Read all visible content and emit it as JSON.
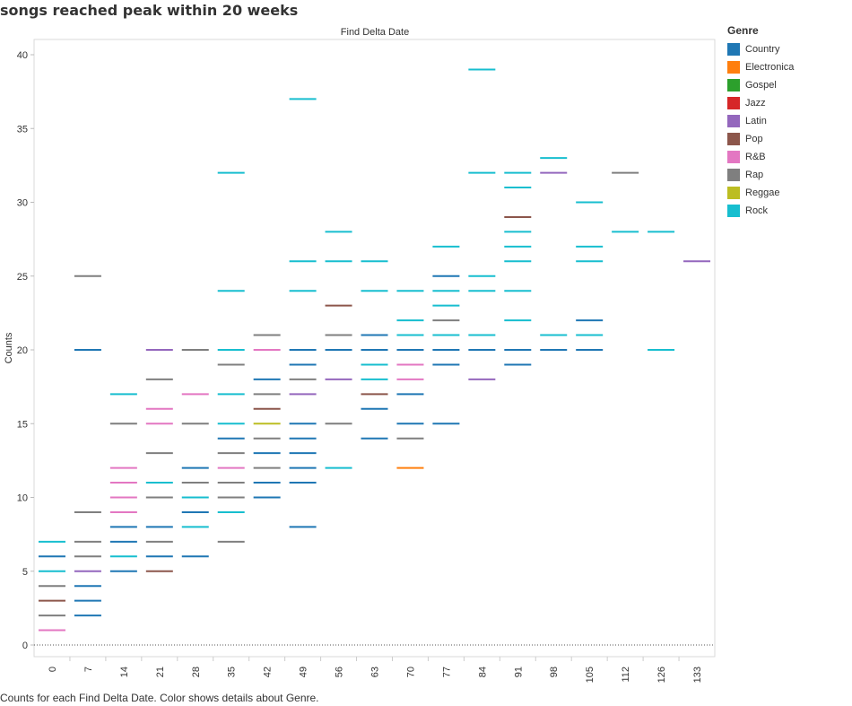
{
  "page": {
    "title": "songs reached peak within 20 weeks",
    "caption": "Counts for each Find Delta Date.  Color shows details about Genre."
  },
  "legend": {
    "title": "Genre",
    "items": [
      {
        "label": "Country",
        "color": "#1f77b4"
      },
      {
        "label": "Electronica",
        "color": "#ff7f0e"
      },
      {
        "label": "Gospel",
        "color": "#2ca02c"
      },
      {
        "label": "Jazz",
        "color": "#d62728"
      },
      {
        "label": "Latin",
        "color": "#9467bd"
      },
      {
        "label": "Pop",
        "color": "#8c564b"
      },
      {
        "label": "R&B",
        "color": "#e377c2"
      },
      {
        "label": "Rap",
        "color": "#7f7f7f"
      },
      {
        "label": "Reggae",
        "color": "#bcbd22"
      },
      {
        "label": "Rock",
        "color": "#17becf"
      }
    ]
  },
  "chart_data": {
    "type": "scatter",
    "mark": "dash",
    "title": "Find Delta Date",
    "xlabel": "",
    "ylabel": "Counts",
    "categories": [
      "0",
      "7",
      "14",
      "21",
      "28",
      "35",
      "42",
      "49",
      "56",
      "63",
      "70",
      "77",
      "84",
      "91",
      "98",
      "105",
      "112",
      "126",
      "133"
    ],
    "ylim": [
      0,
      40
    ],
    "yticks": [
      0,
      5,
      10,
      15,
      20,
      25,
      30,
      35,
      40
    ],
    "grid": false,
    "legend_position": "right",
    "points": [
      {
        "x": "0",
        "y": 7,
        "genre": "Rock"
      },
      {
        "x": "0",
        "y": 6,
        "genre": "Country"
      },
      {
        "x": "0",
        "y": 5,
        "genre": "Rock"
      },
      {
        "x": "0",
        "y": 4,
        "genre": "Rap"
      },
      {
        "x": "0",
        "y": 3,
        "genre": "Pop"
      },
      {
        "x": "0",
        "y": 2,
        "genre": "Rap"
      },
      {
        "x": "0",
        "y": 1,
        "genre": "R&B"
      },
      {
        "x": "7",
        "y": 25,
        "genre": "Rap"
      },
      {
        "x": "7",
        "y": 20,
        "genre": "Country"
      },
      {
        "x": "7",
        "y": 9,
        "genre": "Rap"
      },
      {
        "x": "7",
        "y": 7,
        "genre": "Rap"
      },
      {
        "x": "7",
        "y": 6,
        "genre": "Rap"
      },
      {
        "x": "7",
        "y": 5,
        "genre": "Latin"
      },
      {
        "x": "7",
        "y": 4,
        "genre": "Country"
      },
      {
        "x": "7",
        "y": 3,
        "genre": "Country"
      },
      {
        "x": "7",
        "y": 2,
        "genre": "Country"
      },
      {
        "x": "14",
        "y": 17,
        "genre": "Rock"
      },
      {
        "x": "14",
        "y": 15,
        "genre": "Rap"
      },
      {
        "x": "14",
        "y": 12,
        "genre": "R&B"
      },
      {
        "x": "14",
        "y": 11,
        "genre": "R&B"
      },
      {
        "x": "14",
        "y": 10,
        "genre": "R&B"
      },
      {
        "x": "14",
        "y": 9,
        "genre": "R&B"
      },
      {
        "x": "14",
        "y": 8,
        "genre": "Country"
      },
      {
        "x": "14",
        "y": 7,
        "genre": "Country"
      },
      {
        "x": "14",
        "y": 6,
        "genre": "Rock"
      },
      {
        "x": "14",
        "y": 5,
        "genre": "Country"
      },
      {
        "x": "21",
        "y": 20,
        "genre": "Latin"
      },
      {
        "x": "21",
        "y": 18,
        "genre": "Rap"
      },
      {
        "x": "21",
        "y": 16,
        "genre": "R&B"
      },
      {
        "x": "21",
        "y": 15,
        "genre": "R&B"
      },
      {
        "x": "21",
        "y": 13,
        "genre": "Rap"
      },
      {
        "x": "21",
        "y": 11,
        "genre": "Rock"
      },
      {
        "x": "21",
        "y": 10,
        "genre": "Rap"
      },
      {
        "x": "21",
        "y": 8,
        "genre": "Country"
      },
      {
        "x": "21",
        "y": 7,
        "genre": "Rap"
      },
      {
        "x": "21",
        "y": 6,
        "genre": "Country"
      },
      {
        "x": "21",
        "y": 5,
        "genre": "Pop"
      },
      {
        "x": "28",
        "y": 20,
        "genre": "Rap"
      },
      {
        "x": "28",
        "y": 17,
        "genre": "R&B"
      },
      {
        "x": "28",
        "y": 15,
        "genre": "Rap"
      },
      {
        "x": "28",
        "y": 12,
        "genre": "Country"
      },
      {
        "x": "28",
        "y": 11,
        "genre": "Rap"
      },
      {
        "x": "28",
        "y": 10,
        "genre": "Rock"
      },
      {
        "x": "28",
        "y": 9,
        "genre": "Country"
      },
      {
        "x": "28",
        "y": 8,
        "genre": "Rock"
      },
      {
        "x": "28",
        "y": 6,
        "genre": "Country"
      },
      {
        "x": "35",
        "y": 32,
        "genre": "Rock"
      },
      {
        "x": "35",
        "y": 24,
        "genre": "Rock"
      },
      {
        "x": "35",
        "y": 20,
        "genre": "Rock"
      },
      {
        "x": "35",
        "y": 19,
        "genre": "Rap"
      },
      {
        "x": "35",
        "y": 17,
        "genre": "Rock"
      },
      {
        "x": "35",
        "y": 15,
        "genre": "Rock"
      },
      {
        "x": "35",
        "y": 14,
        "genre": "Country"
      },
      {
        "x": "35",
        "y": 13,
        "genre": "Rap"
      },
      {
        "x": "35",
        "y": 12,
        "genre": "R&B"
      },
      {
        "x": "35",
        "y": 11,
        "genre": "Rap"
      },
      {
        "x": "35",
        "y": 10,
        "genre": "Rap"
      },
      {
        "x": "35",
        "y": 9,
        "genre": "Rock"
      },
      {
        "x": "35",
        "y": 7,
        "genre": "Rap"
      },
      {
        "x": "42",
        "y": 21,
        "genre": "Rap"
      },
      {
        "x": "42",
        "y": 20,
        "genre": "R&B"
      },
      {
        "x": "42",
        "y": 18,
        "genre": "Country"
      },
      {
        "x": "42",
        "y": 17,
        "genre": "Rap"
      },
      {
        "x": "42",
        "y": 16,
        "genre": "Pop"
      },
      {
        "x": "42",
        "y": 15,
        "genre": "Reggae"
      },
      {
        "x": "42",
        "y": 14,
        "genre": "Rap"
      },
      {
        "x": "42",
        "y": 13,
        "genre": "Country"
      },
      {
        "x": "42",
        "y": 12,
        "genre": "Rap"
      },
      {
        "x": "42",
        "y": 11,
        "genre": "Country"
      },
      {
        "x": "42",
        "y": 10,
        "genre": "Country"
      },
      {
        "x": "49",
        "y": 37,
        "genre": "Rock"
      },
      {
        "x": "49",
        "y": 26,
        "genre": "Rock"
      },
      {
        "x": "49",
        "y": 24,
        "genre": "Rock"
      },
      {
        "x": "49",
        "y": 20,
        "genre": "Country"
      },
      {
        "x": "49",
        "y": 19,
        "genre": "Country"
      },
      {
        "x": "49",
        "y": 18,
        "genre": "Rap"
      },
      {
        "x": "49",
        "y": 17,
        "genre": "Latin"
      },
      {
        "x": "49",
        "y": 15,
        "genre": "Country"
      },
      {
        "x": "49",
        "y": 14,
        "genre": "Country"
      },
      {
        "x": "49",
        "y": 13,
        "genre": "Country"
      },
      {
        "x": "49",
        "y": 12,
        "genre": "Country"
      },
      {
        "x": "49",
        "y": 11,
        "genre": "Country"
      },
      {
        "x": "49",
        "y": 8,
        "genre": "Country"
      },
      {
        "x": "56",
        "y": 28,
        "genre": "Rock"
      },
      {
        "x": "56",
        "y": 26,
        "genre": "Rock"
      },
      {
        "x": "56",
        "y": 23,
        "genre": "Pop"
      },
      {
        "x": "56",
        "y": 21,
        "genre": "Rap"
      },
      {
        "x": "56",
        "y": 20,
        "genre": "Country"
      },
      {
        "x": "56",
        "y": 18,
        "genre": "Latin"
      },
      {
        "x": "56",
        "y": 15,
        "genre": "Rap"
      },
      {
        "x": "56",
        "y": 12,
        "genre": "Rock"
      },
      {
        "x": "63",
        "y": 26,
        "genre": "Rock"
      },
      {
        "x": "63",
        "y": 24,
        "genre": "Rock"
      },
      {
        "x": "63",
        "y": 21,
        "genre": "Country"
      },
      {
        "x": "63",
        "y": 20,
        "genre": "Country"
      },
      {
        "x": "63",
        "y": 19,
        "genre": "Rock"
      },
      {
        "x": "63",
        "y": 18,
        "genre": "Rock"
      },
      {
        "x": "63",
        "y": 17,
        "genre": "Pop"
      },
      {
        "x": "63",
        "y": 16,
        "genre": "Country"
      },
      {
        "x": "63",
        "y": 14,
        "genre": "Country"
      },
      {
        "x": "70",
        "y": 24,
        "genre": "Rock"
      },
      {
        "x": "70",
        "y": 22,
        "genre": "Rock"
      },
      {
        "x": "70",
        "y": 21,
        "genre": "Rock"
      },
      {
        "x": "70",
        "y": 20,
        "genre": "Country"
      },
      {
        "x": "70",
        "y": 19,
        "genre": "R&B"
      },
      {
        "x": "70",
        "y": 18,
        "genre": "R&B"
      },
      {
        "x": "70",
        "y": 17,
        "genre": "Country"
      },
      {
        "x": "70",
        "y": 15,
        "genre": "Country"
      },
      {
        "x": "70",
        "y": 14,
        "genre": "Rap"
      },
      {
        "x": "70",
        "y": 12,
        "genre": "Electronica"
      },
      {
        "x": "77",
        "y": 27,
        "genre": "Rock"
      },
      {
        "x": "77",
        "y": 25,
        "genre": "Country"
      },
      {
        "x": "77",
        "y": 24,
        "genre": "Rock"
      },
      {
        "x": "77",
        "y": 23,
        "genre": "Rock"
      },
      {
        "x": "77",
        "y": 22,
        "genre": "Rap"
      },
      {
        "x": "77",
        "y": 21,
        "genre": "Rock"
      },
      {
        "x": "77",
        "y": 20,
        "genre": "Country"
      },
      {
        "x": "77",
        "y": 19,
        "genre": "Country"
      },
      {
        "x": "77",
        "y": 15,
        "genre": "Country"
      },
      {
        "x": "84",
        "y": 39,
        "genre": "Rock"
      },
      {
        "x": "84",
        "y": 32,
        "genre": "Rock"
      },
      {
        "x": "84",
        "y": 25,
        "genre": "Rock"
      },
      {
        "x": "84",
        "y": 24,
        "genre": "Rock"
      },
      {
        "x": "84",
        "y": 21,
        "genre": "Rock"
      },
      {
        "x": "84",
        "y": 20,
        "genre": "Country"
      },
      {
        "x": "84",
        "y": 18,
        "genre": "Latin"
      },
      {
        "x": "91",
        "y": 32,
        "genre": "Rock"
      },
      {
        "x": "91",
        "y": 31,
        "genre": "Rock"
      },
      {
        "x": "91",
        "y": 29,
        "genre": "Pop"
      },
      {
        "x": "91",
        "y": 28,
        "genre": "Rock"
      },
      {
        "x": "91",
        "y": 27,
        "genre": "Rock"
      },
      {
        "x": "91",
        "y": 26,
        "genre": "Rock"
      },
      {
        "x": "91",
        "y": 24,
        "genre": "Rock"
      },
      {
        "x": "91",
        "y": 22,
        "genre": "Rock"
      },
      {
        "x": "91",
        "y": 20,
        "genre": "Country"
      },
      {
        "x": "91",
        "y": 19,
        "genre": "Country"
      },
      {
        "x": "98",
        "y": 33,
        "genre": "Rock"
      },
      {
        "x": "98",
        "y": 32,
        "genre": "Latin"
      },
      {
        "x": "98",
        "y": 21,
        "genre": "Rock"
      },
      {
        "x": "98",
        "y": 20,
        "genre": "Country"
      },
      {
        "x": "105",
        "y": 30,
        "genre": "Rock"
      },
      {
        "x": "105",
        "y": 27,
        "genre": "Rock"
      },
      {
        "x": "105",
        "y": 26,
        "genre": "Rock"
      },
      {
        "x": "105",
        "y": 22,
        "genre": "Country"
      },
      {
        "x": "105",
        "y": 21,
        "genre": "Rock"
      },
      {
        "x": "105",
        "y": 20,
        "genre": "Country"
      },
      {
        "x": "112",
        "y": 32,
        "genre": "Rap"
      },
      {
        "x": "112",
        "y": 28,
        "genre": "Rock"
      },
      {
        "x": "126",
        "y": 28,
        "genre": "Rock"
      },
      {
        "x": "126",
        "y": 20,
        "genre": "Rock"
      },
      {
        "x": "133",
        "y": 26,
        "genre": "Latin"
      }
    ]
  }
}
